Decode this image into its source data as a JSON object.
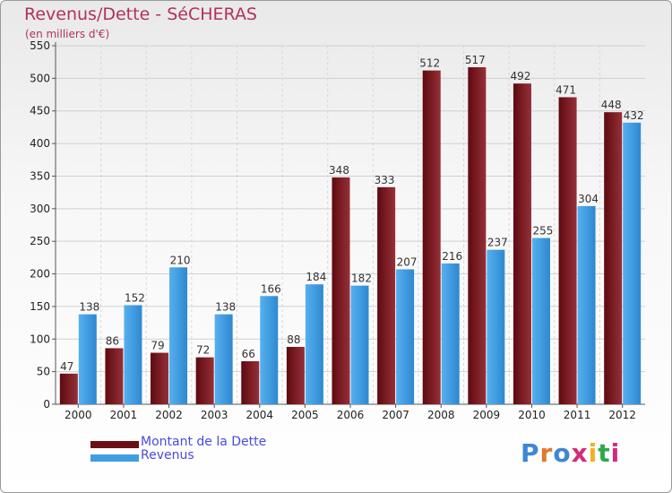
{
  "title": "Revenus/Dette - SéCHERAS",
  "subtitle": "(en milliers d'€)",
  "logo_text": "Proxiti",
  "colors": {
    "debt": "#8b1f25",
    "revenue": "#3f9ee2",
    "title": "#b23060",
    "legend_text": "#4a4ae0"
  },
  "chart_data": {
    "type": "bar",
    "title": "Revenus/Dette - SéCHERAS",
    "subtitle": "(en milliers d'€)",
    "categories": [
      "2000",
      "2001",
      "2002",
      "2003",
      "2004",
      "2005",
      "2006",
      "2007",
      "2008",
      "2009",
      "2010",
      "2011",
      "2012"
    ],
    "series": [
      {
        "name": "Montant de la Dette",
        "values": [
          47,
          86,
          79,
          72,
          66,
          88,
          348,
          333,
          512,
          517,
          492,
          471,
          448
        ]
      },
      {
        "name": "Revenus",
        "values": [
          138,
          152,
          210,
          138,
          166,
          184,
          182,
          207,
          216,
          237,
          255,
          304,
          432
        ]
      }
    ],
    "ylim": [
      0,
      550
    ],
    "yticks": [
      0,
      50,
      100,
      150,
      200,
      250,
      300,
      350,
      400,
      450,
      500,
      550
    ],
    "grid": true,
    "legend": "bottom-left"
  }
}
